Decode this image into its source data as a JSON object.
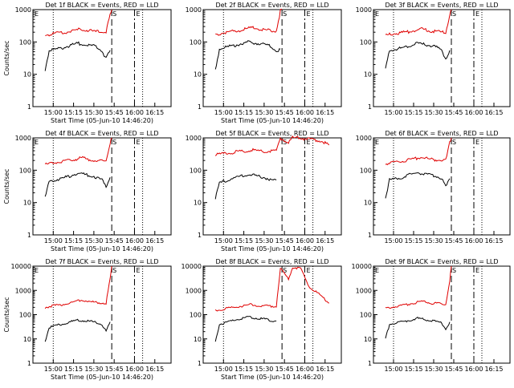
{
  "chart_data": [
    {
      "type": "line",
      "title": "Det 1f BLACK = Events, RED = LLD",
      "xlabel": "Start Time (05-Jun-10 14:46:20)",
      "ylabel": "Counts/sec",
      "x_ticks": [
        "15:00",
        "15:15",
        "15:30",
        "15:45",
        "16:00",
        "16:15"
      ],
      "y_ticks": [
        "1",
        "10",
        "100",
        "1000"
      ],
      "ylim": [
        1,
        1000
      ],
      "yscale": "log",
      "markers": {
        "E_left": "E",
        "S": "S",
        "E_right": "E"
      },
      "series": [
        {
          "name": "BLACK",
          "color": "#000000",
          "label": "Events",
          "values": [
            [
              14.9,
              14
            ],
            [
              14.95,
              55
            ],
            [
              15.1,
              65
            ],
            [
              15.3,
              90
            ],
            [
              15.5,
              75
            ],
            [
              15.6,
              55
            ],
            [
              15.65,
              30
            ],
            [
              15.7,
              55
            ]
          ]
        },
        {
          "name": "RED",
          "color": "#e00000",
          "label": "LLD",
          "values": [
            [
              14.9,
              160
            ],
            [
              15.0,
              180
            ],
            [
              15.2,
              210
            ],
            [
              15.35,
              250
            ],
            [
              15.5,
              210
            ],
            [
              15.65,
              200
            ],
            [
              15.7,
              700
            ],
            [
              15.72,
              1000
            ]
          ]
        }
      ]
    },
    {
      "type": "line",
      "title": "Det 2f BLACK = Events, RED = LLD",
      "xlabel": "Start Time (05-Jun-10 14:46:20)",
      "ylabel": "",
      "x_ticks": [
        "15:00",
        "15:15",
        "15:30",
        "15:45",
        "16:00",
        "16:15"
      ],
      "y_ticks": [
        "1",
        "10",
        "100",
        "1000"
      ],
      "ylim": [
        1,
        1000
      ],
      "yscale": "log",
      "markers": {
        "E_left": "",
        "S": "S",
        "E_right": "E"
      },
      "series": [
        {
          "name": "BLACK",
          "color": "#000000",
          "label": "Events",
          "values": [
            [
              14.9,
              14
            ],
            [
              14.95,
              60
            ],
            [
              15.1,
              75
            ],
            [
              15.3,
              100
            ],
            [
              15.5,
              85
            ],
            [
              15.6,
              70
            ],
            [
              15.65,
              50
            ],
            [
              15.7,
              60
            ]
          ]
        },
        {
          "name": "RED",
          "color": "#e00000",
          "label": "LLD",
          "values": [
            [
              14.9,
              170
            ],
            [
              15.0,
              190
            ],
            [
              15.2,
              230
            ],
            [
              15.35,
              280
            ],
            [
              15.5,
              230
            ],
            [
              15.65,
              220
            ],
            [
              15.7,
              900
            ],
            [
              15.72,
              1000
            ]
          ]
        }
      ]
    },
    {
      "type": "line",
      "title": "Det 3f BLACK = Events, RED = LLD",
      "xlabel": "",
      "ylabel": "",
      "x_ticks": [
        "15:00",
        "15:15",
        "15:30",
        "15:45",
        "16:00",
        "16:15"
      ],
      "y_ticks": [
        "1",
        "10",
        "100",
        "1000"
      ],
      "ylim": [
        1,
        1000
      ],
      "yscale": "log",
      "markers": {
        "E_left": "E",
        "S": "S",
        "E_right": "E"
      },
      "series": [
        {
          "name": "BLACK",
          "color": "#000000",
          "label": "Events",
          "values": [
            [
              14.9,
              14
            ],
            [
              14.95,
              55
            ],
            [
              15.1,
              65
            ],
            [
              15.3,
              90
            ],
            [
              15.5,
              75
            ],
            [
              15.6,
              55
            ],
            [
              15.65,
              30
            ],
            [
              15.7,
              55
            ]
          ]
        },
        {
          "name": "RED",
          "color": "#e00000",
          "label": "LLD",
          "values": [
            [
              14.9,
              160
            ],
            [
              15.0,
              180
            ],
            [
              15.2,
              210
            ],
            [
              15.35,
              250
            ],
            [
              15.5,
              210
            ],
            [
              15.65,
              200
            ],
            [
              15.7,
              700
            ],
            [
              15.72,
              1000
            ]
          ]
        }
      ]
    },
    {
      "type": "line",
      "title": "Det 4f BLACK = Events, RED = LLD",
      "xlabel": "Start Time (05-Jun-10 14:46:20)",
      "ylabel": "Counts/sec",
      "x_ticks": [
        "15:00",
        "15:15",
        "15:30",
        "15:45",
        "16:00",
        "16:15"
      ],
      "y_ticks": [
        "1",
        "10",
        "100",
        "1000"
      ],
      "ylim": [
        1,
        1000
      ],
      "yscale": "log",
      "markers": {
        "E_left": "E",
        "S": "S",
        "E_right": "E"
      },
      "series": [
        {
          "name": "BLACK",
          "color": "#000000",
          "label": "Events",
          "values": [
            [
              14.9,
              14
            ],
            [
              14.95,
              45
            ],
            [
              15.1,
              55
            ],
            [
              15.3,
              80
            ],
            [
              15.5,
              65
            ],
            [
              15.6,
              50
            ],
            [
              15.65,
              30
            ],
            [
              15.7,
              60
            ]
          ]
        },
        {
          "name": "RED",
          "color": "#e00000",
          "label": "LLD",
          "values": [
            [
              14.9,
              150
            ],
            [
              15.0,
              170
            ],
            [
              15.2,
              200
            ],
            [
              15.35,
              240
            ],
            [
              15.5,
              200
            ],
            [
              15.65,
              190
            ],
            [
              15.7,
              700
            ],
            [
              15.72,
              1000
            ]
          ]
        }
      ]
    },
    {
      "type": "line",
      "title": "Det 5f BLACK = Events, RED = LLD",
      "xlabel": "Start Time (05-Jun-10 14:46:20)",
      "ylabel": "",
      "x_ticks": [
        "15:00",
        "15:15",
        "15:30",
        "15:45",
        "16:00",
        "16:15"
      ],
      "y_ticks": [
        "1",
        "10",
        "100",
        "1000"
      ],
      "ylim": [
        1,
        1000
      ],
      "yscale": "log",
      "markers": {
        "E_left": "",
        "S": "S",
        "E_right": "E"
      },
      "series": [
        {
          "name": "BLACK",
          "color": "#000000",
          "label": "Events",
          "values": [
            [
              14.9,
              14
            ],
            [
              14.95,
              40
            ],
            [
              15.1,
              55
            ],
            [
              15.3,
              75
            ],
            [
              15.5,
              60
            ],
            [
              15.6,
              50
            ],
            [
              15.65,
              50
            ]
          ]
        },
        {
          "name": "RED",
          "color": "#e00000",
          "label": "LLD",
          "values": [
            [
              14.9,
              300
            ],
            [
              15.0,
              320
            ],
            [
              15.2,
              380
            ],
            [
              15.35,
              420
            ],
            [
              15.5,
              380
            ],
            [
              15.65,
              400
            ],
            [
              15.7,
              1000
            ],
            [
              15.8,
              700
            ],
            [
              15.85,
              1000
            ],
            [
              15.95,
              1000
            ],
            [
              16.05,
              900
            ],
            [
              16.2,
              800
            ],
            [
              16.3,
              600
            ]
          ]
        }
      ]
    },
    {
      "type": "line",
      "title": "Det 6f BLACK = Events, RED = LLD",
      "xlabel": "",
      "ylabel": "",
      "x_ticks": [
        "15:00",
        "15:15",
        "15:30",
        "15:45",
        "16:00",
        "16:15"
      ],
      "y_ticks": [
        "1",
        "10",
        "100",
        "1000"
      ],
      "ylim": [
        1,
        1000
      ],
      "yscale": "log",
      "markers": {
        "E_left": "E",
        "S": "S",
        "E_right": "E"
      },
      "series": [
        {
          "name": "BLACK",
          "color": "#000000",
          "label": "Events",
          "values": [
            [
              14.9,
              14
            ],
            [
              14.95,
              50
            ],
            [
              15.1,
              60
            ],
            [
              15.3,
              85
            ],
            [
              15.5,
              70
            ],
            [
              15.6,
              55
            ],
            [
              15.65,
              30
            ],
            [
              15.7,
              55
            ]
          ]
        },
        {
          "name": "RED",
          "color": "#e00000",
          "label": "LLD",
          "values": [
            [
              14.9,
              160
            ],
            [
              15.0,
              180
            ],
            [
              15.2,
              210
            ],
            [
              15.35,
              250
            ],
            [
              15.5,
              210
            ],
            [
              15.65,
              200
            ],
            [
              15.7,
              700
            ],
            [
              15.72,
              1000
            ]
          ]
        }
      ]
    },
    {
      "type": "line",
      "title": "Det 7f BLACK = Events, RED = LLD",
      "xlabel": "Start Time (05-Jun-10 14:46:20)",
      "ylabel": "Counts/sec",
      "x_ticks": [
        "15:00",
        "15:15",
        "15:30",
        "15:45",
        "16:00",
        "16:15"
      ],
      "y_ticks": [
        "1",
        "10",
        "100",
        "1000",
        "10000"
      ],
      "ylim": [
        1,
        10000
      ],
      "yscale": "log",
      "markers": {
        "E_left": "E",
        "S": "S",
        "E_right": "E"
      },
      "series": [
        {
          "name": "BLACK",
          "color": "#000000",
          "label": "Events",
          "values": [
            [
              14.9,
              8
            ],
            [
              14.95,
              30
            ],
            [
              15.1,
              40
            ],
            [
              15.3,
              60
            ],
            [
              15.5,
              50
            ],
            [
              15.6,
              40
            ],
            [
              15.65,
              20
            ],
            [
              15.7,
              50
            ]
          ]
        },
        {
          "name": "RED",
          "color": "#e00000",
          "label": "LLD",
          "values": [
            [
              14.9,
              200
            ],
            [
              15.0,
              230
            ],
            [
              15.2,
              300
            ],
            [
              15.35,
              400
            ],
            [
              15.5,
              320
            ],
            [
              15.65,
              300
            ],
            [
              15.7,
              3000
            ],
            [
              15.72,
              10000
            ]
          ]
        }
      ]
    },
    {
      "type": "line",
      "title": "Det 8f BLACK = Events, RED = LLD",
      "xlabel": "Start Time (05-Jun-10 14:46:20)",
      "ylabel": "",
      "x_ticks": [
        "15:00",
        "15:15",
        "15:30",
        "15:45",
        "16:00",
        "16:15"
      ],
      "y_ticks": [
        "1",
        "10",
        "100",
        "1000",
        "10000"
      ],
      "ylim": [
        1,
        10000
      ],
      "yscale": "log",
      "markers": {
        "E_left": "",
        "S": "S",
        "E_right": "E"
      },
      "series": [
        {
          "name": "BLACK",
          "color": "#000000",
          "label": "Events",
          "values": [
            [
              14.9,
              8
            ],
            [
              14.95,
              40
            ],
            [
              15.1,
              55
            ],
            [
              15.3,
              80
            ],
            [
              15.5,
              65
            ],
            [
              15.6,
              55
            ],
            [
              15.65,
              55
            ]
          ]
        },
        {
          "name": "RED",
          "color": "#e00000",
          "label": "LLD",
          "values": [
            [
              14.9,
              150
            ],
            [
              15.0,
              170
            ],
            [
              15.2,
              220
            ],
            [
              15.35,
              260
            ],
            [
              15.5,
              220
            ],
            [
              15.65,
              230
            ],
            [
              15.7,
              8000
            ],
            [
              15.8,
              3000
            ],
            [
              15.85,
              9000
            ],
            [
              15.95,
              8000
            ],
            [
              16.05,
              1500
            ],
            [
              16.2,
              600
            ],
            [
              16.3,
              300
            ]
          ]
        }
      ]
    },
    {
      "type": "line",
      "title": "Det 9f BLACK = Events, RED = LLD",
      "xlabel": "",
      "ylabel": "",
      "x_ticks": [
        "15:00",
        "15:15",
        "15:30",
        "15:45",
        "16:00",
        "16:15"
      ],
      "y_ticks": [
        "1",
        "10",
        "100",
        "1000",
        "10000"
      ],
      "ylim": [
        1,
        10000
      ],
      "yscale": "log",
      "markers": {
        "E_left": "E",
        "S": "S",
        "E_right": "E"
      },
      "series": [
        {
          "name": "BLACK",
          "color": "#000000",
          "label": "Events",
          "values": [
            [
              14.9,
              10
            ],
            [
              14.95,
              40
            ],
            [
              15.1,
              50
            ],
            [
              15.3,
              70
            ],
            [
              15.5,
              55
            ],
            [
              15.6,
              45
            ],
            [
              15.65,
              25
            ],
            [
              15.7,
              50
            ]
          ]
        },
        {
          "name": "RED",
          "color": "#e00000",
          "label": "LLD",
          "values": [
            [
              14.9,
              180
            ],
            [
              15.0,
              210
            ],
            [
              15.2,
              280
            ],
            [
              15.35,
              350
            ],
            [
              15.5,
              290
            ],
            [
              15.65,
              270
            ],
            [
              15.7,
              2500
            ],
            [
              15.72,
              10000
            ]
          ]
        }
      ]
    }
  ]
}
